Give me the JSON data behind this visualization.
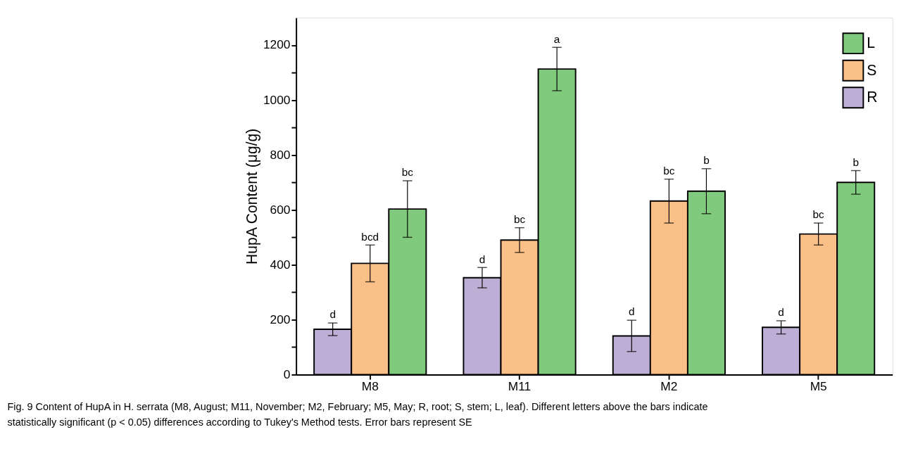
{
  "chart_data": {
    "type": "bar",
    "ylabel": "HupA Content (μg/g)",
    "categories": [
      "M8",
      "M11",
      "M2",
      "M5"
    ],
    "series": [
      {
        "name": "R",
        "color": "#bcaed5",
        "values": [
          165,
          353,
          141,
          172
        ],
        "errors": [
          23,
          37,
          57,
          24
        ],
        "value_labels": [
          "d",
          "d",
          "d",
          "d"
        ]
      },
      {
        "name": "S",
        "color": "#fbc087",
        "values": [
          405,
          490,
          632,
          512
        ],
        "errors": [
          67,
          45,
          80,
          40
        ],
        "value_labels": [
          "bcd",
          "bc",
          "bc",
          "bc"
        ]
      },
      {
        "name": "L",
        "color": "#80ca7e",
        "values": [
          603,
          1113,
          668,
          700
        ],
        "errors": [
          103,
          79,
          82,
          43
        ],
        "value_labels": [
          "bc",
          "a",
          "b",
          "b"
        ]
      }
    ],
    "ylim": [
      0,
      1300
    ],
    "yticks": [
      0,
      {
        "value": 100,
        "label": null
      },
      200,
      {
        "value": 300,
        "label": null
      },
      400,
      {
        "value": 500,
        "label": null
      },
      600,
      {
        "value": 700,
        "label": null
      },
      800,
      {
        "value": 900,
        "label": null
      },
      1000,
      {
        "value": 1100,
        "label": null
      },
      1200
    ],
    "grid": false,
    "legend": "top right",
    "annotations": [
      "Fig. 9  Content of HupA in H. serrata (M8, August; M11, November; M2, February; M5, May; R, root; S, stem; L, leaf). Different letters above the bars indicate statistically significant (p < 0.05) differences according to Tukey's Method tests. Error bars represent SE"
    ]
  }
}
